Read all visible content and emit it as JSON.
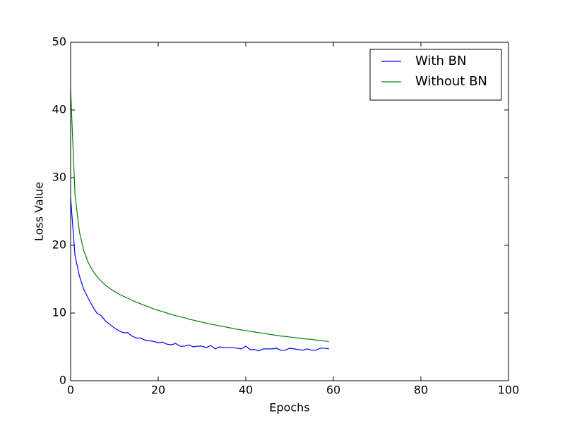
{
  "chart_data": {
    "type": "line",
    "x_label": "Epochs",
    "y_label": "Loss Value",
    "x": [
      0,
      1,
      2,
      3,
      4,
      5,
      6,
      7,
      8,
      9,
      10,
      11,
      12,
      13,
      14,
      15,
      16,
      17,
      18,
      19,
      20,
      21,
      22,
      23,
      24,
      25,
      26,
      27,
      28,
      29,
      30,
      31,
      32,
      33,
      34,
      35,
      36,
      37,
      38,
      39,
      40,
      41,
      42,
      43,
      44,
      45,
      46,
      47,
      48,
      49,
      50,
      51,
      52,
      53,
      54,
      55,
      56,
      57,
      58,
      59
    ],
    "series": [
      {
        "name": "With BN",
        "color": "#0000ff",
        "values": [
          27,
          18.5,
          15.5,
          13.5,
          12.2,
          11,
          10,
          9.6,
          8.8,
          8.3,
          7.8,
          7.4,
          7.1,
          7.1,
          6.6,
          6.3,
          6.3,
          6.0,
          5.9,
          5.8,
          5.6,
          5.7,
          5.4,
          5.3,
          5.5,
          5.1,
          5.1,
          5.3,
          5.0,
          5.1,
          5.1,
          4.9,
          5.2,
          4.7,
          5.0,
          4.9,
          4.9,
          4.9,
          4.8,
          4.7,
          5.1,
          4.6,
          4.6,
          4.4,
          4.7,
          4.7,
          4.7,
          4.8,
          4.5,
          4.5,
          4.8,
          4.7,
          4.6,
          4.5,
          4.7,
          4.5,
          4.5,
          4.8,
          4.8,
          4.7
        ]
      },
      {
        "name": "Without BN",
        "color": "#008000",
        "values": [
          43,
          27.5,
          22,
          19.2,
          17.5,
          16.3,
          15.4,
          14.7,
          14.1,
          13.6,
          13.2,
          12.8,
          12.5,
          12.2,
          11.9,
          11.6,
          11.35,
          11.1,
          10.85,
          10.6,
          10.4,
          10.2,
          10.0,
          9.8,
          9.6,
          9.45,
          9.3,
          9.1,
          8.95,
          8.8,
          8.65,
          8.5,
          8.35,
          8.25,
          8.1,
          8.0,
          7.85,
          7.75,
          7.6,
          7.5,
          7.4,
          7.3,
          7.2,
          7.1,
          7.0,
          6.9,
          6.8,
          6.7,
          6.6,
          6.55,
          6.45,
          6.4,
          6.3,
          6.2,
          6.15,
          6.1,
          6.0,
          5.95,
          5.85,
          5.8
        ]
      }
    ],
    "xlim": [
      0,
      100
    ],
    "xticks": [
      0,
      20,
      40,
      60,
      80,
      100
    ],
    "ylim": [
      0,
      50
    ],
    "yticks": [
      0,
      10,
      20,
      30,
      40,
      50
    ],
    "grid": false,
    "legend": "upper right"
  }
}
